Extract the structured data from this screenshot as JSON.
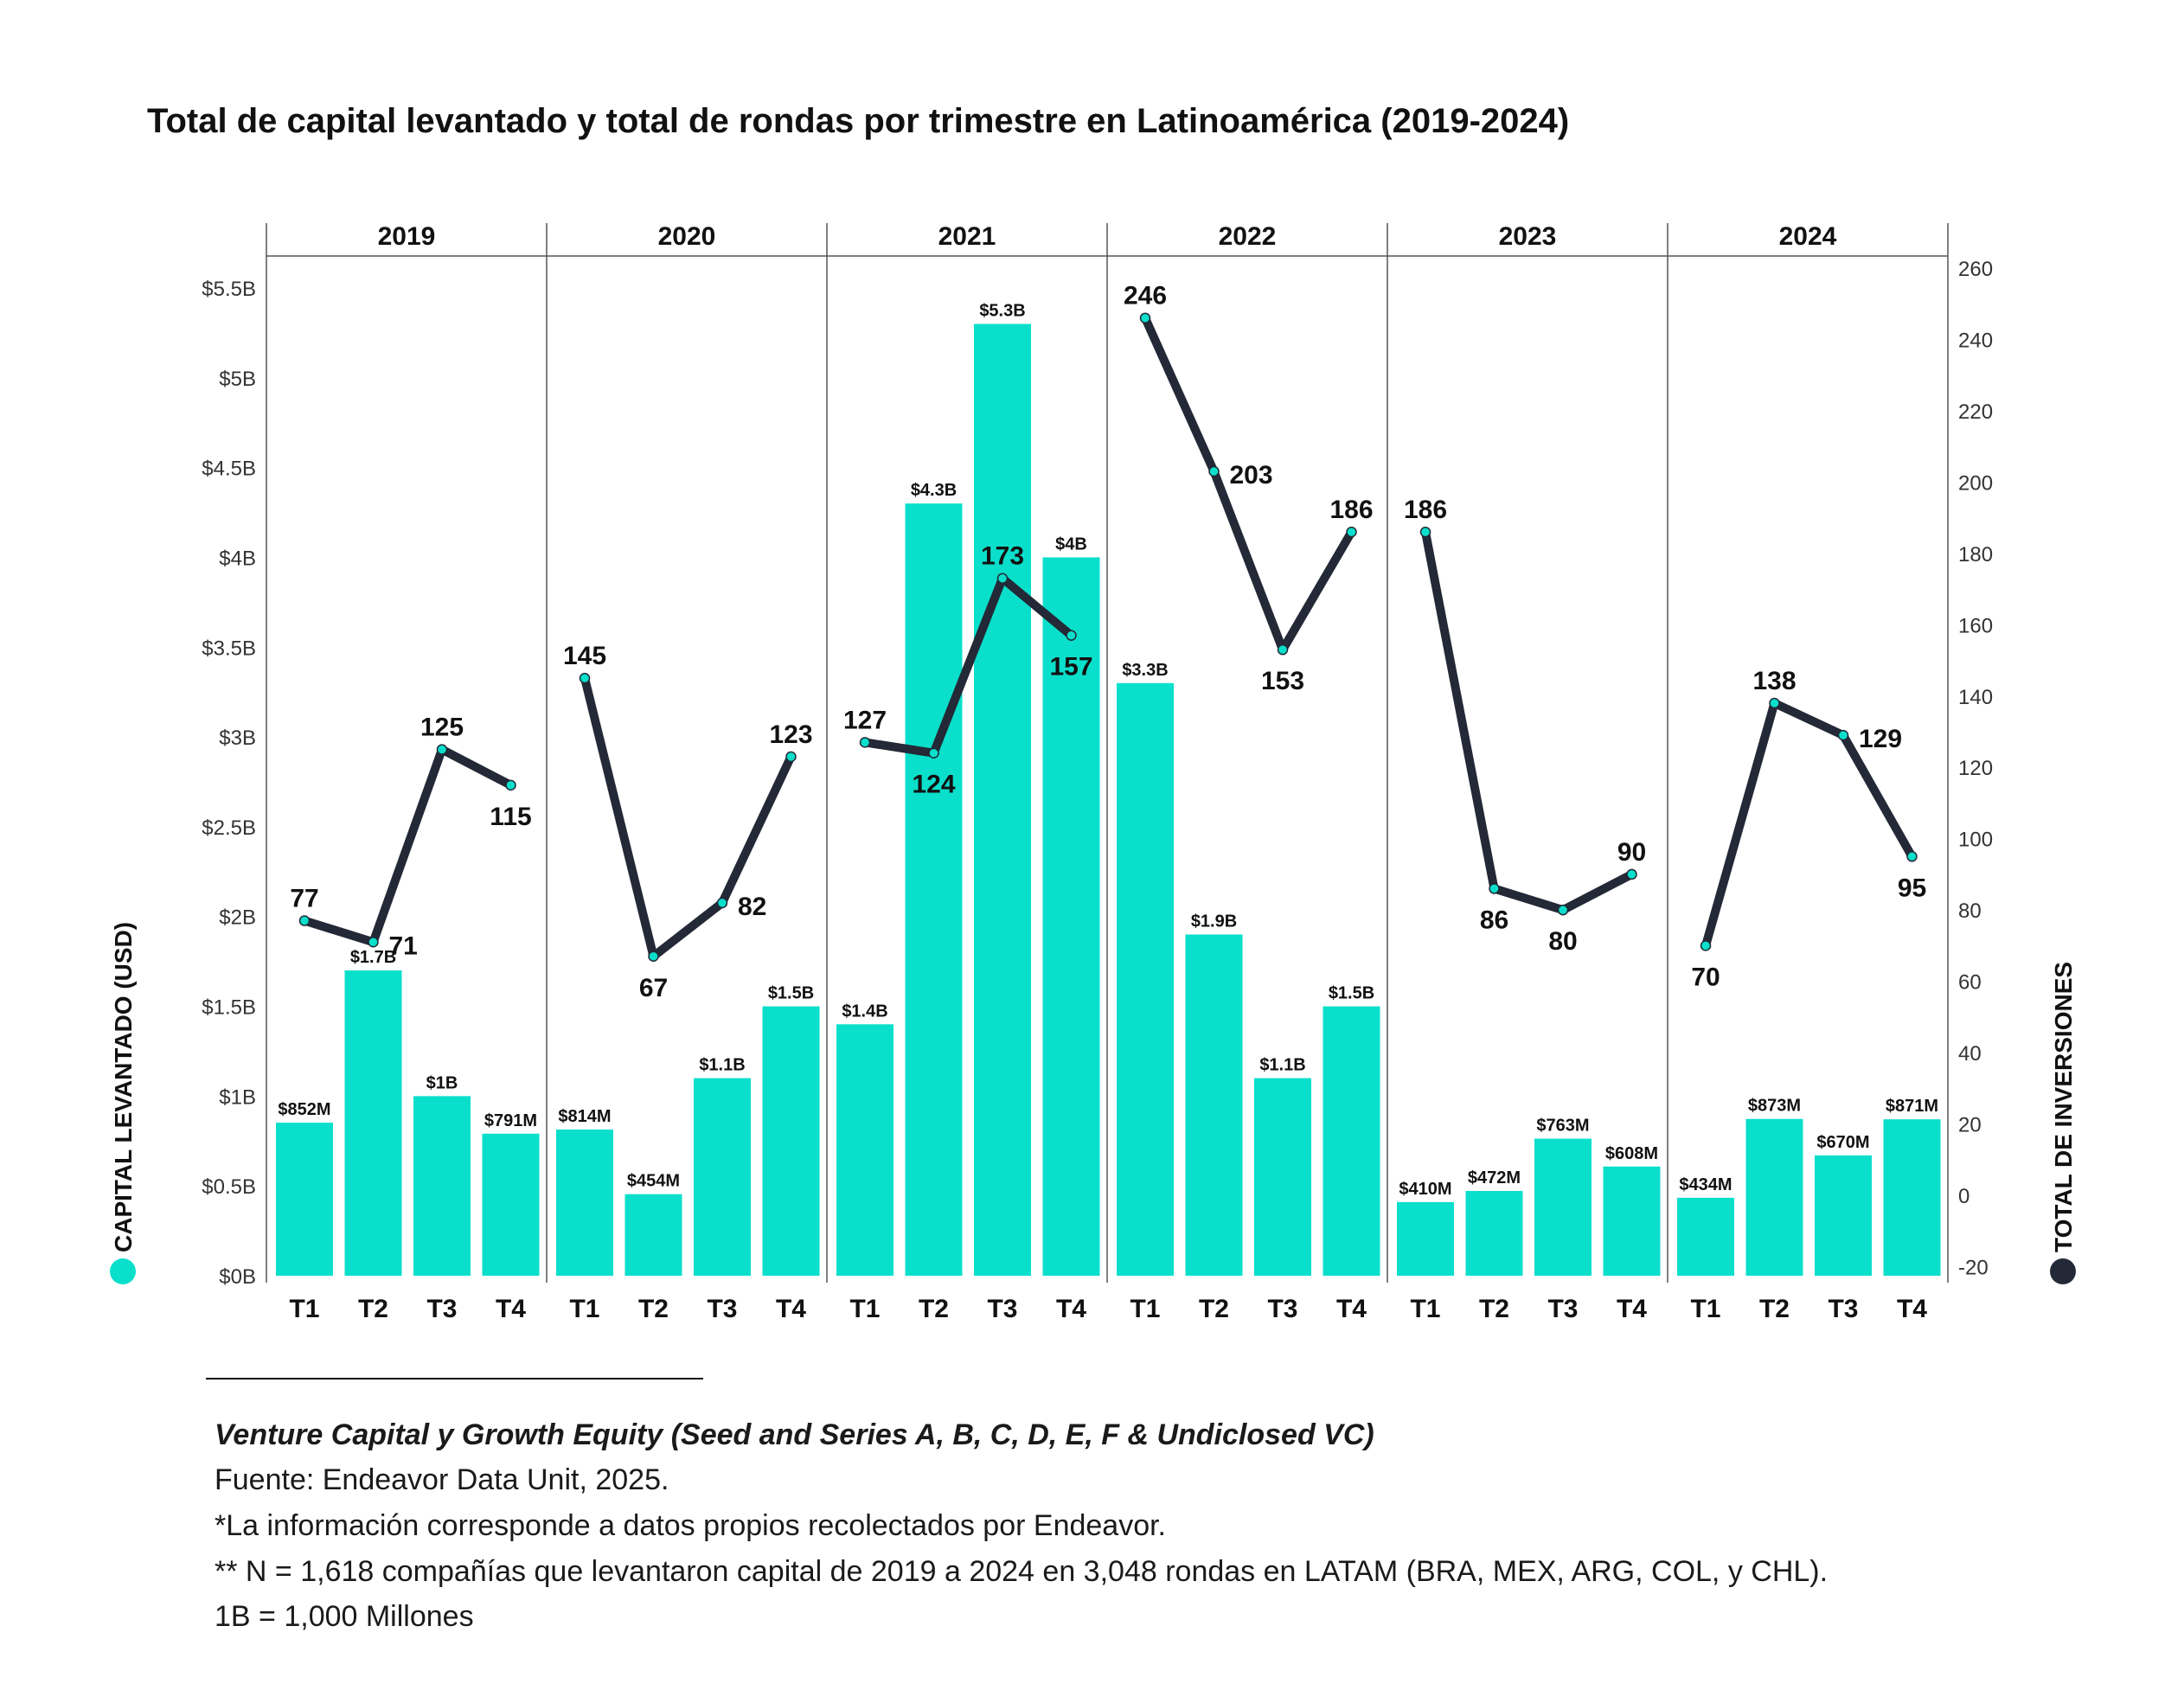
{
  "title": "Total de capital levantado y total de rondas por trimestre en Latinoamérica (2019-2024)",
  "colors": {
    "bar": "#0ADFCB",
    "line": "#232936",
    "text": "#111111",
    "grid": "#555555"
  },
  "chart_data": {
    "type": "bar",
    "title": "Total de capital levantado y total de rondas por trimestre en Latinoamérica (2019-2024)",
    "years": [
      "2019",
      "2020",
      "2021",
      "2022",
      "2023",
      "2024"
    ],
    "quarters": [
      "T1",
      "T2",
      "T3",
      "T4"
    ],
    "categories": [
      "2019 T1",
      "2019 T2",
      "2019 T3",
      "2019 T4",
      "2020 T1",
      "2020 T2",
      "2020 T3",
      "2020 T4",
      "2021 T1",
      "2021 T2",
      "2021 T3",
      "2021 T4",
      "2022 T1",
      "2022 T2",
      "2022 T3",
      "2022 T4",
      "2023 T1",
      "2023 T2",
      "2023 T3",
      "2023 T4",
      "2024 T1",
      "2024 T2",
      "2024 T3",
      "2024 T4"
    ],
    "series": [
      {
        "name": "CAPITAL LEVANTADO (USD)",
        "type": "bar",
        "axis": "left",
        "values": [
          0.852,
          1.7,
          1.0,
          0.791,
          0.814,
          0.454,
          1.1,
          1.5,
          1.4,
          4.3,
          5.3,
          4.0,
          3.3,
          1.9,
          1.1,
          1.5,
          0.41,
          0.472,
          0.763,
          0.608,
          0.434,
          0.873,
          0.67,
          0.871
        ],
        "labels": [
          "$852M",
          "$1.7B",
          "$1B",
          "$791M",
          "$814M",
          "$454M",
          "$1.1B",
          "$1.5B",
          "$1.4B",
          "$4.3B",
          "$5.3B",
          "$4B",
          "$3.3B",
          "$1.9B",
          "$1.1B",
          "$1.5B",
          "$410M",
          "$472M",
          "$763M",
          "$608M",
          "$434M",
          "$873M",
          "$670M",
          "$871M"
        ]
      },
      {
        "name": "TOTAL DE INVERSIONES",
        "type": "line",
        "axis": "right",
        "values": [
          77,
          71,
          125,
          115,
          145,
          67,
          82,
          123,
          127,
          124,
          173,
          157,
          246,
          203,
          153,
          186,
          186,
          86,
          80,
          90,
          70,
          138,
          129,
          95
        ],
        "label_pos": [
          "above",
          "right",
          "above",
          "below",
          "above",
          "below",
          "right",
          "above",
          "above",
          "below",
          "above",
          "below",
          "above",
          "right",
          "below",
          "above",
          "above",
          "below",
          "below",
          "above",
          "below",
          "above",
          "right",
          "below"
        ]
      }
    ],
    "y_left": {
      "label": "CAPITAL LEVANTADO (USD)",
      "min": 0,
      "max": 5.5,
      "ticks": [
        0,
        0.5,
        1,
        1.5,
        2,
        2.5,
        3,
        3.5,
        4,
        4.5,
        5,
        5.5
      ],
      "tick_labels": [
        "$0B",
        "$0.5B",
        "$1B",
        "$1.5B",
        "$2B",
        "$2.5B",
        "$3B",
        "$3.5B",
        "$4B",
        "$4.5B",
        "$5B",
        "$5.5B"
      ]
    },
    "y_right": {
      "label": "TOTAL DE INVERSIONES",
      "min": -20,
      "max": 260,
      "ticks": [
        -20,
        0,
        20,
        40,
        60,
        80,
        100,
        120,
        140,
        160,
        180,
        200,
        220,
        240,
        260
      ],
      "tick_labels": [
        "-20",
        "0",
        "20",
        "40",
        "60",
        "80",
        "100",
        "120",
        "140",
        "160",
        "180",
        "200",
        "220",
        "240",
        "260"
      ]
    },
    "grid": false,
    "legend": "axis labels (left and right)"
  },
  "footnotes": {
    "italic": "Venture Capital y Growth Equity (Seed and Series A, B, C, D, E, F & Undiclosed VC)",
    "source": "Fuente: Endeavor Data Unit, 2025.",
    "info": "*La información corresponde a datos propios recolectados por Endeavor.",
    "n": "** N = 1,618 compañías que levantaron capital de 2019 a 2024 en 3,048 rondas en LATAM (BRA, MEX, ARG, COL, y CHL).",
    "unit": "1B = 1,000 Millones"
  }
}
